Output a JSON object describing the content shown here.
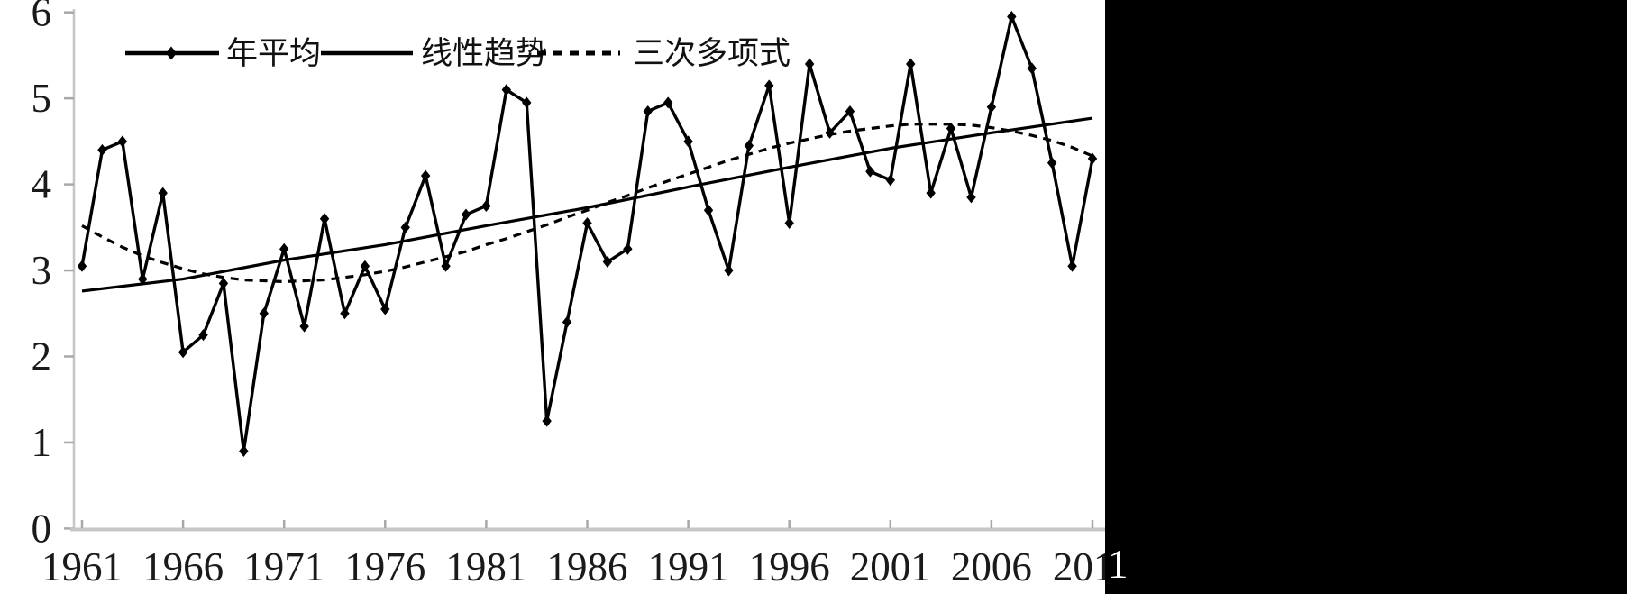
{
  "chart_data": {
    "type": "line",
    "title": "",
    "xlabel": "",
    "ylabel": "",
    "ylim": [
      0,
      6
    ],
    "xlim": [
      1961,
      2011
    ],
    "yticks": [
      0,
      1,
      2,
      3,
      4,
      5,
      6
    ],
    "xticks": [
      1961,
      1966,
      1971,
      1976,
      1981,
      1986,
      1991,
      1996,
      2001,
      2006,
      2011
    ],
    "grid": false,
    "legend_position": "top",
    "x": [
      1961,
      1962,
      1963,
      1964,
      1965,
      1966,
      1967,
      1968,
      1969,
      1970,
      1971,
      1972,
      1973,
      1974,
      1975,
      1976,
      1977,
      1978,
      1979,
      1980,
      1981,
      1982,
      1983,
      1984,
      1985,
      1986,
      1987,
      1988,
      1989,
      1990,
      1991,
      1992,
      1993,
      1994,
      1995,
      1996,
      1997,
      1998,
      1999,
      2000,
      2001,
      2002,
      2003,
      2004,
      2005,
      2006,
      2007,
      2008,
      2009,
      2010,
      2011
    ],
    "series": [
      {
        "name": "年平均",
        "style": "solid_line_with_diamond_markers",
        "color": "#000000",
        "values": [
          3.05,
          4.4,
          4.5,
          2.9,
          3.9,
          2.05,
          2.25,
          2.85,
          0.9,
          2.5,
          3.25,
          2.35,
          3.6,
          2.5,
          3.05,
          2.55,
          3.5,
          4.1,
          3.05,
          3.65,
          3.75,
          5.1,
          4.95,
          1.25,
          2.4,
          3.55,
          3.1,
          3.25,
          4.85,
          4.95,
          4.5,
          3.7,
          3.0,
          4.45,
          5.15,
          3.55,
          5.4,
          4.6,
          4.85,
          4.15,
          4.05,
          5.4,
          3.9,
          4.65,
          3.85,
          4.9,
          5.95,
          5.35,
          4.25,
          3.05,
          4.3
        ]
      },
      {
        "name": "线性趋势",
        "style": "solid_line",
        "color": "#000000",
        "sample_years": [
          1961,
          1966,
          1971,
          1976,
          1981,
          1986,
          1991,
          1996,
          2001,
          2006,
          2011
        ],
        "values": [
          2.76,
          2.9,
          3.12,
          3.3,
          3.52,
          3.73,
          3.97,
          4.2,
          4.42,
          4.6,
          4.77
        ]
      },
      {
        "name": "三次多项式",
        "style": "dashed_line",
        "color": "#000000",
        "values": [
          3.52,
          3.39,
          3.27,
          3.17,
          3.09,
          3.02,
          2.96,
          2.92,
          2.89,
          2.88,
          2.87,
          2.88,
          2.89,
          2.92,
          2.95,
          2.99,
          3.04,
          3.1,
          3.16,
          3.22,
          3.3,
          3.37,
          3.45,
          3.53,
          3.62,
          3.7,
          3.79,
          3.87,
          3.96,
          4.04,
          4.12,
          4.2,
          4.28,
          4.35,
          4.42,
          4.48,
          4.53,
          4.58,
          4.62,
          4.65,
          4.68,
          4.7,
          4.7,
          4.7,
          4.69,
          4.66,
          4.62,
          4.57,
          4.51,
          4.43,
          4.33
        ]
      }
    ]
  },
  "clipped_tick_fragment": "1",
  "colors": {
    "page_background": "#000000",
    "panel_background": "#ffffff",
    "axis_line": "#c6c6c6",
    "tick_mark": "#a8a8a8",
    "data_line": "#000000"
  }
}
